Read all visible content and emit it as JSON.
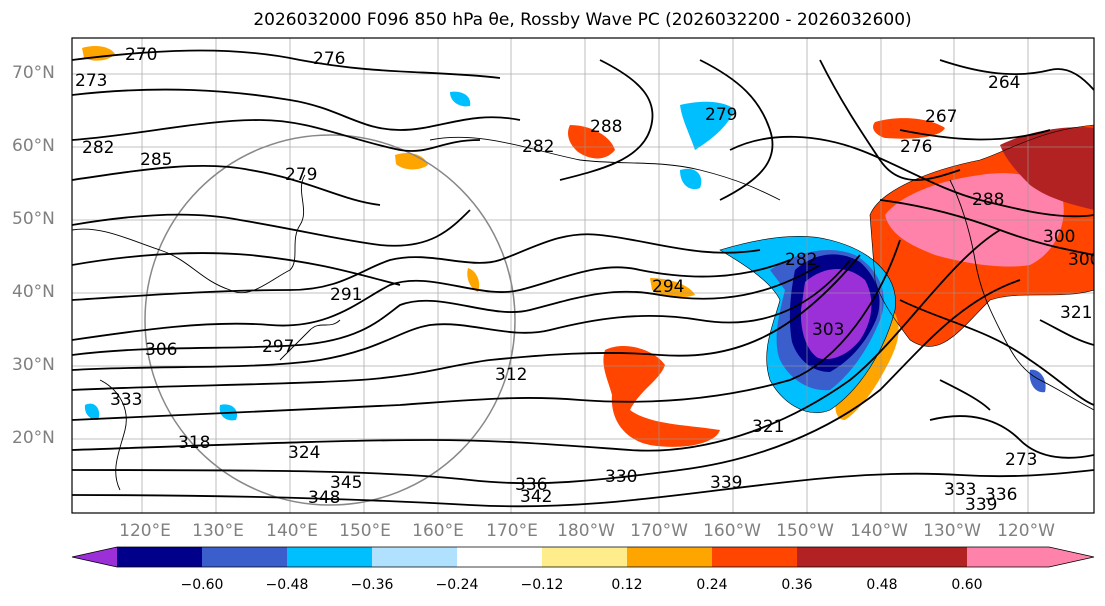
{
  "title": "2026032000 F096 850 hPa θe, Rossby Wave PC (2026032200 - 2026032600)",
  "lat_labels": [
    "70°N",
    "60°N",
    "50°N",
    "40°N",
    "30°N",
    "20°N"
  ],
  "lon_labels": [
    "120°E",
    "130°E",
    "140°E",
    "150°E",
    "160°E",
    "170°E",
    "180°W",
    "170°W",
    "160°W",
    "150°W",
    "140°W",
    "130°W",
    "120°W"
  ],
  "colorbar": {
    "ticks": [
      "−0.60",
      "−0.48",
      "−0.36",
      "−0.24",
      "−0.12",
      "0.12",
      "0.24",
      "0.36",
      "0.48",
      "0.60"
    ],
    "colors": [
      "#9b30d8",
      "#00008b",
      "#3a5fcd",
      "#00bfff",
      "#b0e2ff",
      "#ffffff",
      "#ffec8b",
      "#ffa500",
      "#ff4500",
      "#b22222",
      "#ff82ab"
    ]
  },
  "contour_labels": [
    "270",
    "276",
    "273",
    "282",
    "285",
    "279",
    "288",
    "282",
    "279",
    "264",
    "267",
    "276",
    "288",
    "282",
    "294",
    "291",
    "300",
    "303",
    "297",
    "312",
    "306",
    "333",
    "318",
    "324",
    "345",
    "348",
    "330",
    "336",
    "342",
    "339",
    "321",
    "321",
    "333",
    "336",
    "339",
    "300",
    "273"
  ]
}
